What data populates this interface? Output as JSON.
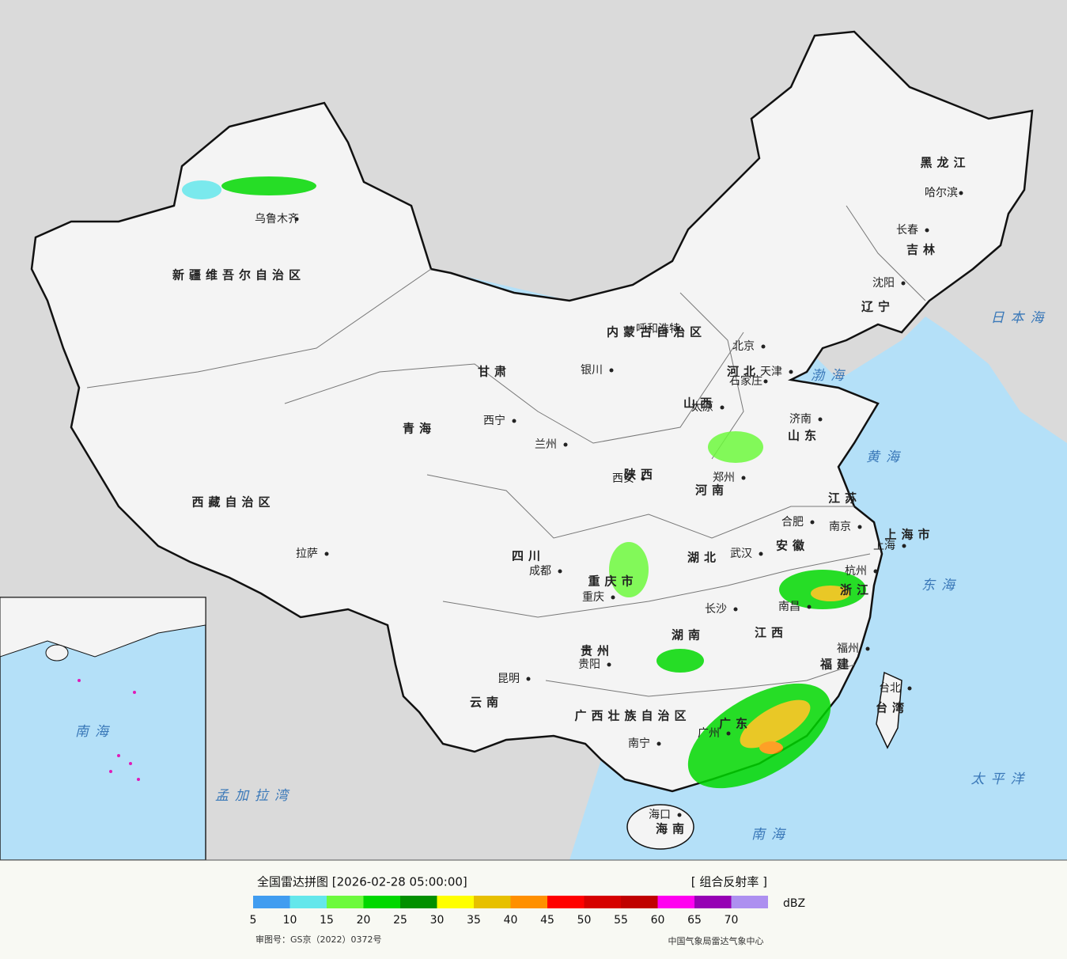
{
  "title": "全国雷达拼图 [2026-02-28 05:00:00]",
  "product": "[ 组合反射率 ]",
  "legend": {
    "ticks": [
      5,
      10,
      15,
      20,
      25,
      30,
      35,
      40,
      45,
      50,
      55,
      60,
      65,
      70
    ],
    "colors": [
      "#419df0",
      "#64e7eb",
      "#6dfa3d",
      "#00d800",
      "#019000",
      "#ffff00",
      "#e7c000",
      "#ff9000",
      "#ff0000",
      "#d60000",
      "#c00000",
      "#ff00f0",
      "#9600b4",
      "#ad90f0"
    ],
    "unit": "dBZ"
  },
  "footer": {
    "approval": "审图号：GS京（2022）0372号",
    "source": "中国气象局雷达气象中心"
  },
  "labels": {
    "provinces": [
      "新疆维吾尔自治区",
      "西藏自治区",
      "青海",
      "甘肃",
      "内蒙古自治区",
      "黑龙江",
      "吉林",
      "辽宁",
      "河北",
      "山西",
      "山东",
      "河南",
      "陕西",
      "四川",
      "重庆市",
      "湖北",
      "湖南",
      "江西",
      "安徽",
      "江苏",
      "浙江",
      "上海市",
      "福建",
      "贵州",
      "云南",
      "广西壮族自治区",
      "广东",
      "海南",
      "台湾"
    ],
    "cities": [
      "乌鲁木齐",
      "拉萨",
      "西宁",
      "兰州",
      "银川",
      "呼和浩特",
      "北京",
      "天津",
      "石家庄",
      "太原",
      "济南",
      "郑州",
      "西安",
      "成都",
      "重庆",
      "贵阳",
      "昆明",
      "南宁",
      "长沙",
      "武汉",
      "南昌",
      "合肥",
      "南京",
      "上海",
      "杭州",
      "福州",
      "广州",
      "海口",
      "哈尔滨",
      "长春",
      "沈阳",
      "台北"
    ],
    "seas": [
      "日本海",
      "渤海",
      "黄海",
      "东海",
      "南海",
      "太平洋",
      "孟加拉湾",
      "南海"
    ]
  }
}
